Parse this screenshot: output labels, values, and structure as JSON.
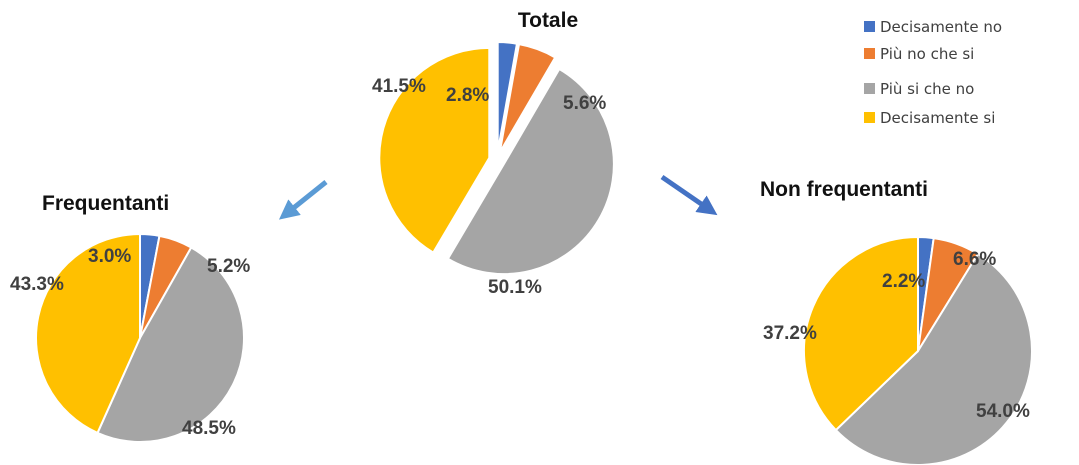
{
  "legend": [
    {
      "label": "Decisamente no",
      "color": "#4472C4"
    },
    {
      "label": "Più no che si",
      "color": "#ED7D31"
    },
    {
      "label": "Più si che no",
      "color": "#A5A5A5"
    },
    {
      "label": "Decisamente si",
      "color": "#FFC000"
    }
  ],
  "chart_data": [
    {
      "type": "pie",
      "title": "Totale",
      "categories": [
        "Decisamente no",
        "Più no che si",
        "Più si che no",
        "Decisamente si"
      ],
      "values": [
        2.8,
        5.6,
        50.1,
        41.5
      ],
      "labels": [
        "2.8%",
        "5.6%",
        "50.1%",
        "41.5%"
      ],
      "exploded": true
    },
    {
      "type": "pie",
      "title": "Frequentanti",
      "categories": [
        "Decisamente no",
        "Più no che si",
        "Più si che no",
        "Decisamente si"
      ],
      "values": [
        3.0,
        5.2,
        48.5,
        43.3
      ],
      "labels": [
        "3.0%",
        "5.2%",
        "48.5%",
        "43.3%"
      ],
      "exploded": false
    },
    {
      "type": "pie",
      "title": "Non frequentanti",
      "categories": [
        "Decisamente no",
        "Più no che si",
        "Più si che no",
        "Decisamente si"
      ],
      "values": [
        2.2,
        6.6,
        54.0,
        37.2
      ],
      "labels": [
        "2.2%",
        "6.6%",
        "54.0%",
        "37.2%"
      ],
      "exploded": false
    }
  ],
  "arrows": [
    {
      "name": "arrow-to-frequentanti-icon",
      "color": "#5B9BD5"
    },
    {
      "name": "arrow-to-non-frequentanti-icon",
      "color": "#4472C4"
    }
  ]
}
